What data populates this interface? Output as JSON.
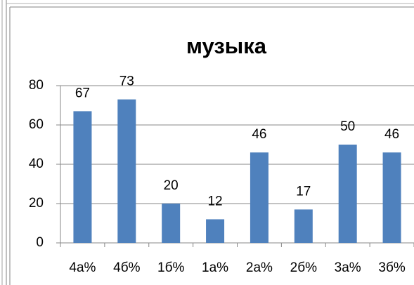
{
  "chart_data": {
    "type": "bar",
    "title": "музыка",
    "categories": [
      "4а%",
      "4б%",
      "1б%",
      "1а%",
      "2а%",
      "2б%",
      "3а%",
      "3б%"
    ],
    "values": [
      67,
      73,
      20,
      12,
      46,
      17,
      50,
      46
    ],
    "color": "#4f81bd",
    "ylim": [
      0,
      80
    ],
    "yticks": [
      0,
      20,
      40,
      60,
      80
    ],
    "grid": true
  }
}
